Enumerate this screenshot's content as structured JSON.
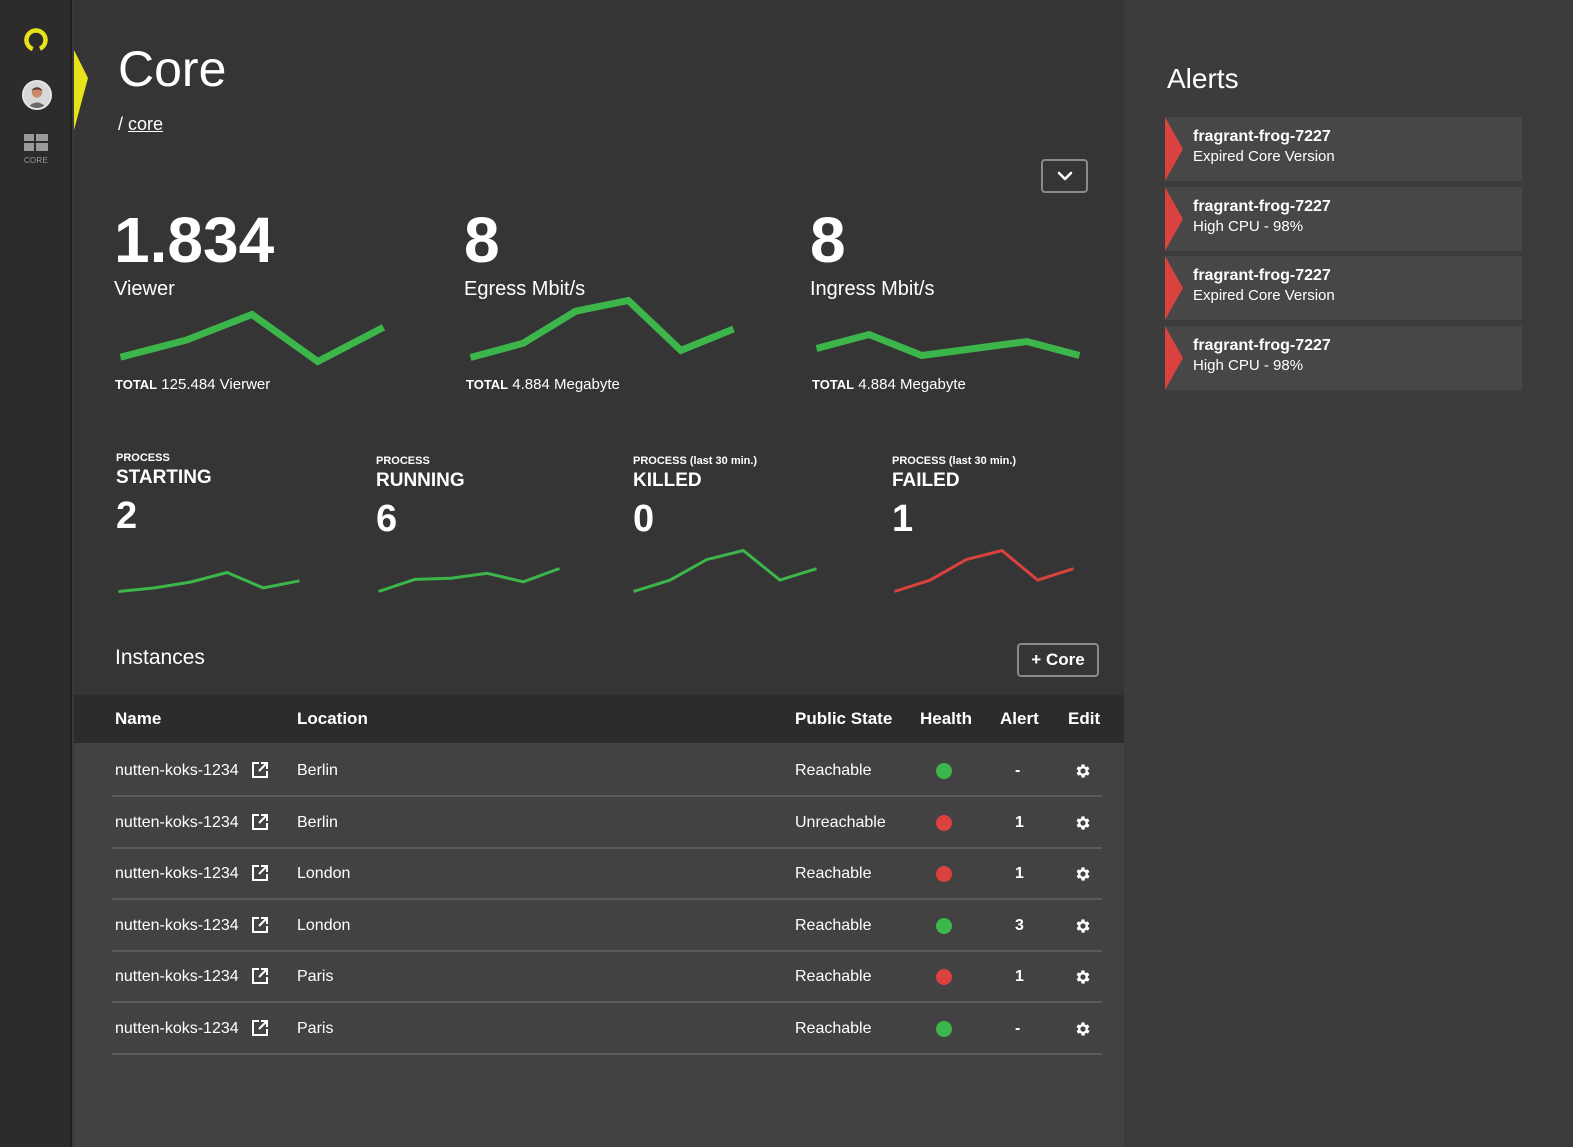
{
  "nav": {
    "core_label": "CORE"
  },
  "page": {
    "title": "Core",
    "breadcrumb_sep": "/",
    "breadcrumb_link": "core"
  },
  "stats": [
    {
      "value": "1.834",
      "label": "Viewer",
      "total_key": "TOTAL",
      "total_value": "125.484 Vierwer",
      "trend": [
        4,
        8,
        14,
        3,
        11
      ]
    },
    {
      "value": "8",
      "label": "Egress Mbit/s",
      "total_key": "TOTAL",
      "total_value": "4.884 Megabyte",
      "trend": [
        2,
        10,
        28,
        34,
        6,
        18
      ]
    },
    {
      "value": "8",
      "label": "Ingress Mbit/s",
      "total_key": "TOTAL",
      "total_value": "4.884 Megabyte",
      "trend": [
        3,
        5,
        2,
        3,
        4,
        2
      ]
    }
  ],
  "processes": [
    {
      "caption": "PROCESS",
      "state": "STARTING",
      "count": "2",
      "color": "#3cb54a",
      "trend": [
        2,
        5,
        10,
        18,
        5,
        11
      ]
    },
    {
      "caption": "PROCESS",
      "state": "RUNNING",
      "count": "6",
      "color": "#3cb54a",
      "trend": [
        2,
        12,
        13,
        17,
        10,
        21
      ]
    },
    {
      "caption": "PROCESS (last 30 min.)",
      "state": "KILLED",
      "count": "0",
      "color": "#3cb54a",
      "trend": [
        2,
        12,
        30,
        38,
        12,
        22
      ]
    },
    {
      "caption": "PROCESS (last 30 min.)",
      "state": "FAILED",
      "count": "1",
      "color": "#d9423f",
      "trend": [
        2,
        12,
        30,
        38,
        12,
        22
      ]
    }
  ],
  "instances": {
    "title": "Instances",
    "add_label": "+ Core",
    "headers": {
      "name": "Name",
      "location": "Location",
      "state": "Public State",
      "health": "Health",
      "alert": "Alert",
      "edit": "Edit"
    },
    "rows": [
      {
        "name": "nutten-koks-1234",
        "location": "Berlin",
        "state": "Reachable",
        "health": "#3cb54a",
        "alert": "-"
      },
      {
        "name": "nutten-koks-1234",
        "location": "Berlin",
        "state": "Unreachable",
        "health": "#d9423f",
        "alert": "1"
      },
      {
        "name": "nutten-koks-1234",
        "location": "London",
        "state": "Reachable",
        "health": "#d9423f",
        "alert": "1"
      },
      {
        "name": "nutten-koks-1234",
        "location": "London",
        "state": "Reachable",
        "health": "#3cb54a",
        "alert": "3"
      },
      {
        "name": "nutten-koks-1234",
        "location": "Paris",
        "state": "Reachable",
        "health": "#d9423f",
        "alert": "1"
      },
      {
        "name": "nutten-koks-1234",
        "location": "Paris",
        "state": "Reachable",
        "health": "#3cb54a",
        "alert": "-"
      }
    ]
  },
  "alerts": {
    "title": "Alerts",
    "items": [
      {
        "name": "fragrant-frog-7227",
        "message": "Expired Core Version"
      },
      {
        "name": "fragrant-frog-7227",
        "message": "High CPU - 98%"
      },
      {
        "name": "fragrant-frog-7227",
        "message": "Expired Core Version"
      },
      {
        "name": "fragrant-frog-7227",
        "message": "High CPU - 98%"
      }
    ]
  },
  "colors": {
    "accent": "#e8e21a",
    "ok": "#3cb54a",
    "error": "#d9423f"
  }
}
